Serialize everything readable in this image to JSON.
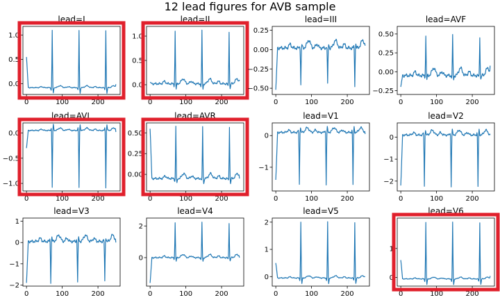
{
  "figure_title": "12 lead figures for AVB sample",
  "colors": {
    "trace": "#1f77b4",
    "highlight": "#e0202c",
    "axis": "#000000"
  },
  "chart_data": [
    {
      "type": "line",
      "title": "lead=I",
      "highlighted": true,
      "xlim": [
        -10,
        262
      ],
      "ylim": [
        -0.22,
        1.18
      ],
      "x_ticks": [
        0,
        100,
        200
      ],
      "y_ticks": [
        0.0,
        0.5,
        1.0
      ],
      "y_tick_labels": [
        "0.0",
        "0.5",
        "1.0"
      ],
      "baseline": -0.08,
      "baseline_wave": 0.04,
      "r_peaks": [
        72,
        147,
        222
      ],
      "r_amplitude": 1.1,
      "r_polarity": "up",
      "start_value": 0.55,
      "end_value": -0.01
    },
    {
      "type": "line",
      "title": "lead=II",
      "highlighted": true,
      "xlim": [
        -10,
        262
      ],
      "ylim": [
        -0.2,
        1.2
      ],
      "x_ticks": [
        0,
        100,
        200
      ],
      "y_ticks": [
        0.0,
        0.5,
        1.0
      ],
      "y_tick_labels": [
        "0.0",
        "0.5",
        "1.0"
      ],
      "baseline": 0.02,
      "baseline_wave": 0.1,
      "r_peaks": [
        70,
        145,
        221
      ],
      "r_amplitude": 1.1,
      "r_polarity": "up",
      "start_value": 0.05,
      "end_value": 0.1
    },
    {
      "type": "line",
      "title": "lead=III",
      "highlighted": false,
      "xlim": [
        -10,
        262
      ],
      "ylim": [
        -0.58,
        0.3
      ],
      "x_ticks": [
        0,
        100,
        200
      ],
      "y_ticks": [
        -0.5,
        -0.25,
        0.0,
        0.25
      ],
      "y_tick_labels": [
        "−0.50",
        "−0.25",
        "0.00",
        "0.25"
      ],
      "baseline": 0.02,
      "baseline_wave": 0.1,
      "r_peaks": [
        70,
        145,
        221
      ],
      "r_amplitude": -0.46,
      "r_polarity": "down",
      "start_value": -0.52,
      "end_value": 0.05
    },
    {
      "type": "line",
      "title": "lead=AVF",
      "highlighted": false,
      "xlim": [
        -10,
        262
      ],
      "ylim": [
        -0.3,
        0.6
      ],
      "x_ticks": [
        0,
        100,
        200
      ],
      "y_ticks": [
        -0.25,
        0.0,
        0.25,
        0.5
      ],
      "y_tick_labels": [
        "−0.25",
        "0.00",
        "0.25",
        "0.50"
      ],
      "baseline": -0.05,
      "baseline_wave": 0.1,
      "r_peaks": [
        70,
        145,
        221
      ],
      "r_amplitude": 0.47,
      "r_polarity": "up",
      "start_value": -0.2,
      "end_value": 0.08
    },
    {
      "type": "line",
      "title": "lead=AVL",
      "highlighted": true,
      "xlim": [
        -10,
        262
      ],
      "ylim": [
        -1.15,
        0.2
      ],
      "x_ticks": [
        0,
        100,
        200
      ],
      "y_ticks": [
        -1.0,
        -0.5,
        0.0
      ],
      "y_tick_labels": [
        "−1.0",
        "−0.5",
        "0.0"
      ],
      "baseline": 0.05,
      "baseline_wave": 0.05,
      "r_peaks": [
        72,
        147,
        222
      ],
      "r_amplitude": -1.08,
      "r_polarity": "down",
      "start_value": -0.3,
      "end_value": 0.02
    },
    {
      "type": "line",
      "title": "lead=AVR",
      "highlighted": true,
      "xlim": [
        -10,
        262
      ],
      "ylim": [
        -0.2,
        0.62
      ],
      "x_ticks": [
        0,
        100,
        200
      ],
      "y_ticks": [
        0.0,
        0.25,
        0.5
      ],
      "y_tick_labels": [
        "0.00",
        "0.25",
        "0.50"
      ],
      "baseline": -0.05,
      "baseline_wave": 0.06,
      "r_peaks": [
        72,
        147,
        222
      ],
      "r_amplitude": 0.58,
      "r_polarity": "up",
      "start_value": 0.55,
      "end_value": -0.05
    },
    {
      "type": "line",
      "title": "lead=V1",
      "highlighted": false,
      "xlim": [
        -10,
        262
      ],
      "ylim": [
        -1.75,
        0.4
      ],
      "x_ticks": [
        0,
        100,
        200
      ],
      "y_ticks": [
        -1,
        0
      ],
      "y_tick_labels": [
        "−1",
        "0"
      ],
      "baseline": 0.1,
      "baseline_wave": 0.15,
      "r_peaks": [
        66,
        141,
        216
      ],
      "r_amplitude": -1.55,
      "r_polarity": "down",
      "start_value": -1.4,
      "end_value": 0.05
    },
    {
      "type": "line",
      "title": "lead=V2",
      "highlighted": false,
      "xlim": [
        -10,
        262
      ],
      "ylim": [
        -2.45,
        0.65
      ],
      "x_ticks": [
        0,
        100,
        200
      ],
      "y_ticks": [
        -2,
        -1,
        0
      ],
      "y_tick_labels": [
        "−2",
        "−1",
        "0"
      ],
      "baseline": 0.1,
      "baseline_wave": 0.22,
      "r_peaks": [
        66,
        141,
        216
      ],
      "r_amplitude": -2.25,
      "r_polarity": "down",
      "start_value": -2.2,
      "end_value": 0.1
    },
    {
      "type": "line",
      "title": "lead=V3",
      "highlighted": false,
      "xlim": [
        -10,
        262
      ],
      "ylim": [
        -2.05,
        1.15
      ],
      "x_ticks": [
        0,
        100,
        200
      ],
      "y_ticks": [
        -2,
        -1,
        0,
        1
      ],
      "y_tick_labels": [
        "−2",
        "−1",
        "0",
        "1"
      ],
      "baseline": 0.05,
      "baseline_wave": 0.3,
      "r_peaks": [
        68,
        143,
        219
      ],
      "r_amplitude": -1.85,
      "r_polarity": "down",
      "start_value": -1.9,
      "end_value": 0.0
    },
    {
      "type": "line",
      "title": "lead=V4",
      "highlighted": false,
      "xlim": [
        -10,
        262
      ],
      "ylim": [
        -1.8,
        2.5
      ],
      "x_ticks": [
        0,
        100,
        200
      ],
      "y_ticks": [
        0,
        2
      ],
      "y_tick_labels": [
        "0",
        "2"
      ],
      "baseline": 0.0,
      "baseline_wave": 0.2,
      "r_peaks": [
        70,
        145,
        221
      ],
      "r_amplitude": 2.2,
      "r_polarity": "up",
      "start_value": -1.6,
      "end_value": 0.0
    },
    {
      "type": "line",
      "title": "lead=V5",
      "highlighted": false,
      "xlim": [
        -10,
        262
      ],
      "ylim": [
        -0.35,
        2.15
      ],
      "x_ticks": [
        0,
        100,
        200
      ],
      "y_ticks": [
        0,
        1,
        2
      ],
      "y_tick_labels": [
        "0",
        "1",
        "2"
      ],
      "baseline": -0.05,
      "baseline_wave": 0.08,
      "r_peaks": [
        70,
        145,
        221
      ],
      "r_amplitude": 2.0,
      "r_polarity": "up",
      "start_value": 0.5,
      "end_value": 0.0
    },
    {
      "type": "line",
      "title": "lead=V6",
      "highlighted": true,
      "xlim": [
        -10,
        262
      ],
      "ylim": [
        -0.3,
        2.05
      ],
      "x_ticks": [
        0,
        100,
        200
      ],
      "y_ticks": [
        0,
        1
      ],
      "y_tick_labels": [
        "0",
        "1"
      ],
      "baseline": -0.05,
      "baseline_wave": 0.06,
      "r_peaks": [
        70,
        145,
        221
      ],
      "r_amplitude": 1.9,
      "r_polarity": "up",
      "start_value": 0.6,
      "end_value": 0.05
    }
  ]
}
